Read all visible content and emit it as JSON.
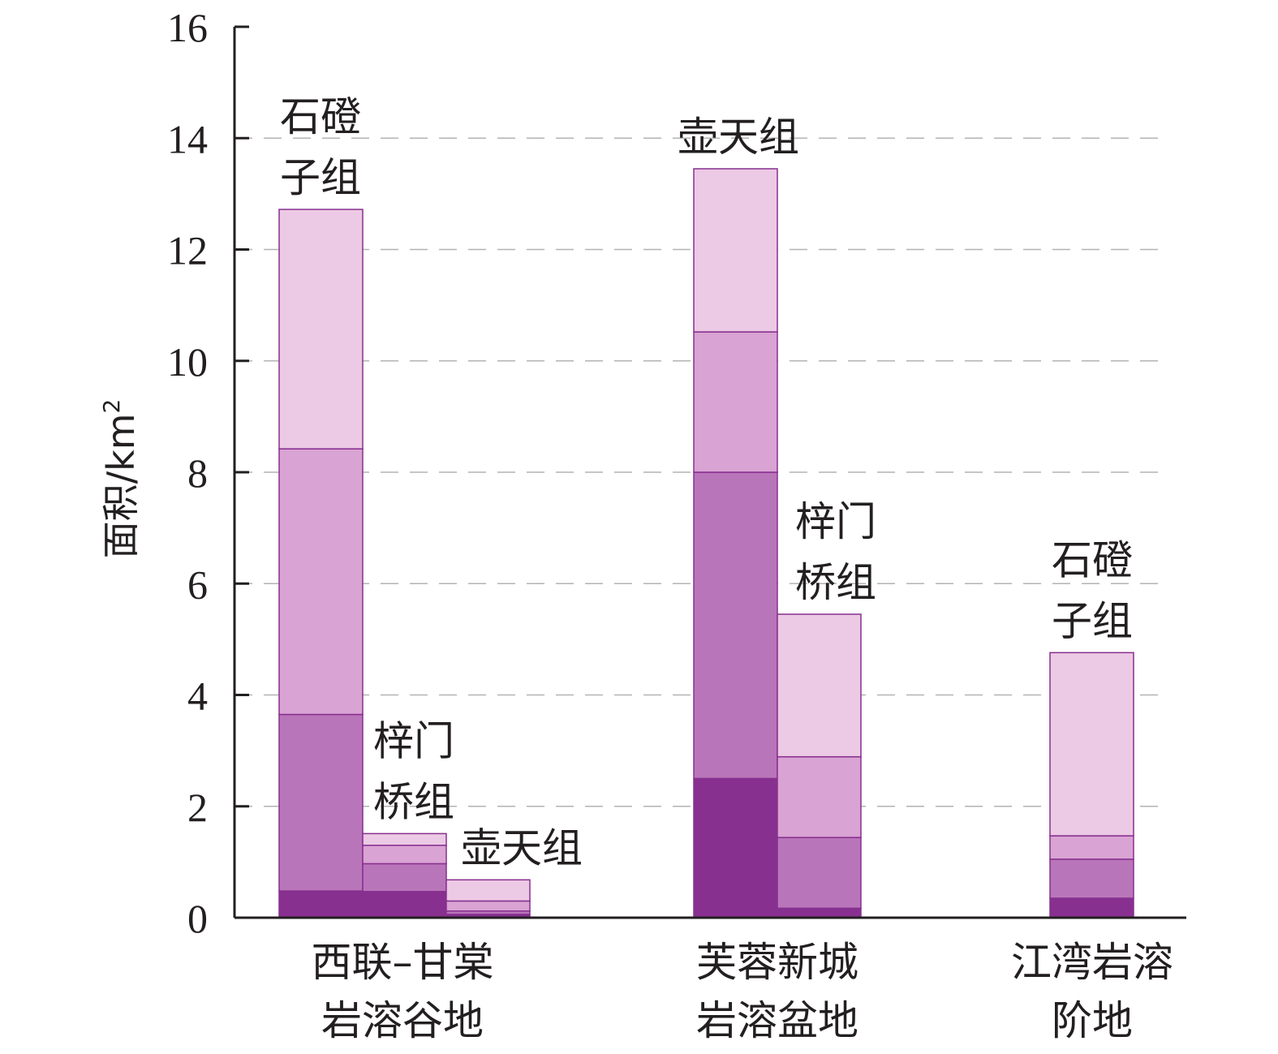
{
  "chart_data": {
    "type": "bar",
    "stacked": true,
    "ylabel": "面积/km",
    "ylabel_sup": "2",
    "ylim": [
      0,
      16
    ],
    "yticks": [
      0,
      2,
      4,
      6,
      8,
      10,
      12,
      14,
      16
    ],
    "grid": "horizontal dashed",
    "segment_colors": [
      "#87308f",
      "#b975b9",
      "#d9a3d3",
      "#ecc9e4"
    ],
    "outline_color": "#87308f",
    "groups": [
      {
        "lines": [
          "西联–甘棠",
          "岩溶谷地"
        ],
        "bars": [
          {
            "label_lines": [
              "石磴",
              "子组"
            ],
            "segments": [
              0.48,
              3.17,
              4.77,
              4.3
            ]
          },
          {
            "label_lines": [
              "梓门",
              "桥组"
            ],
            "segments": [
              0.47,
              0.5,
              0.33,
              0.21
            ]
          },
          {
            "label_lines": [
              "壶天组"
            ],
            "segments": [
              0.06,
              0.06,
              0.18,
              0.38
            ]
          }
        ]
      },
      {
        "lines": [
          "芙蓉新城",
          "岩溶盆地"
        ],
        "bars": [
          {
            "label_lines": [
              "壶天组"
            ],
            "segments": [
              2.5,
              5.5,
              2.52,
              2.93
            ]
          },
          {
            "label_lines": [
              "梓门",
              "桥组"
            ],
            "segments": [
              0.17,
              1.27,
              1.45,
              2.56
            ]
          }
        ]
      },
      {
        "lines": [
          "江湾岩溶",
          "阶地"
        ],
        "bars": [
          {
            "label_lines": [
              "石磴",
              "子组"
            ],
            "segments": [
              0.35,
              0.7,
              0.42,
              3.29
            ]
          }
        ]
      }
    ]
  }
}
